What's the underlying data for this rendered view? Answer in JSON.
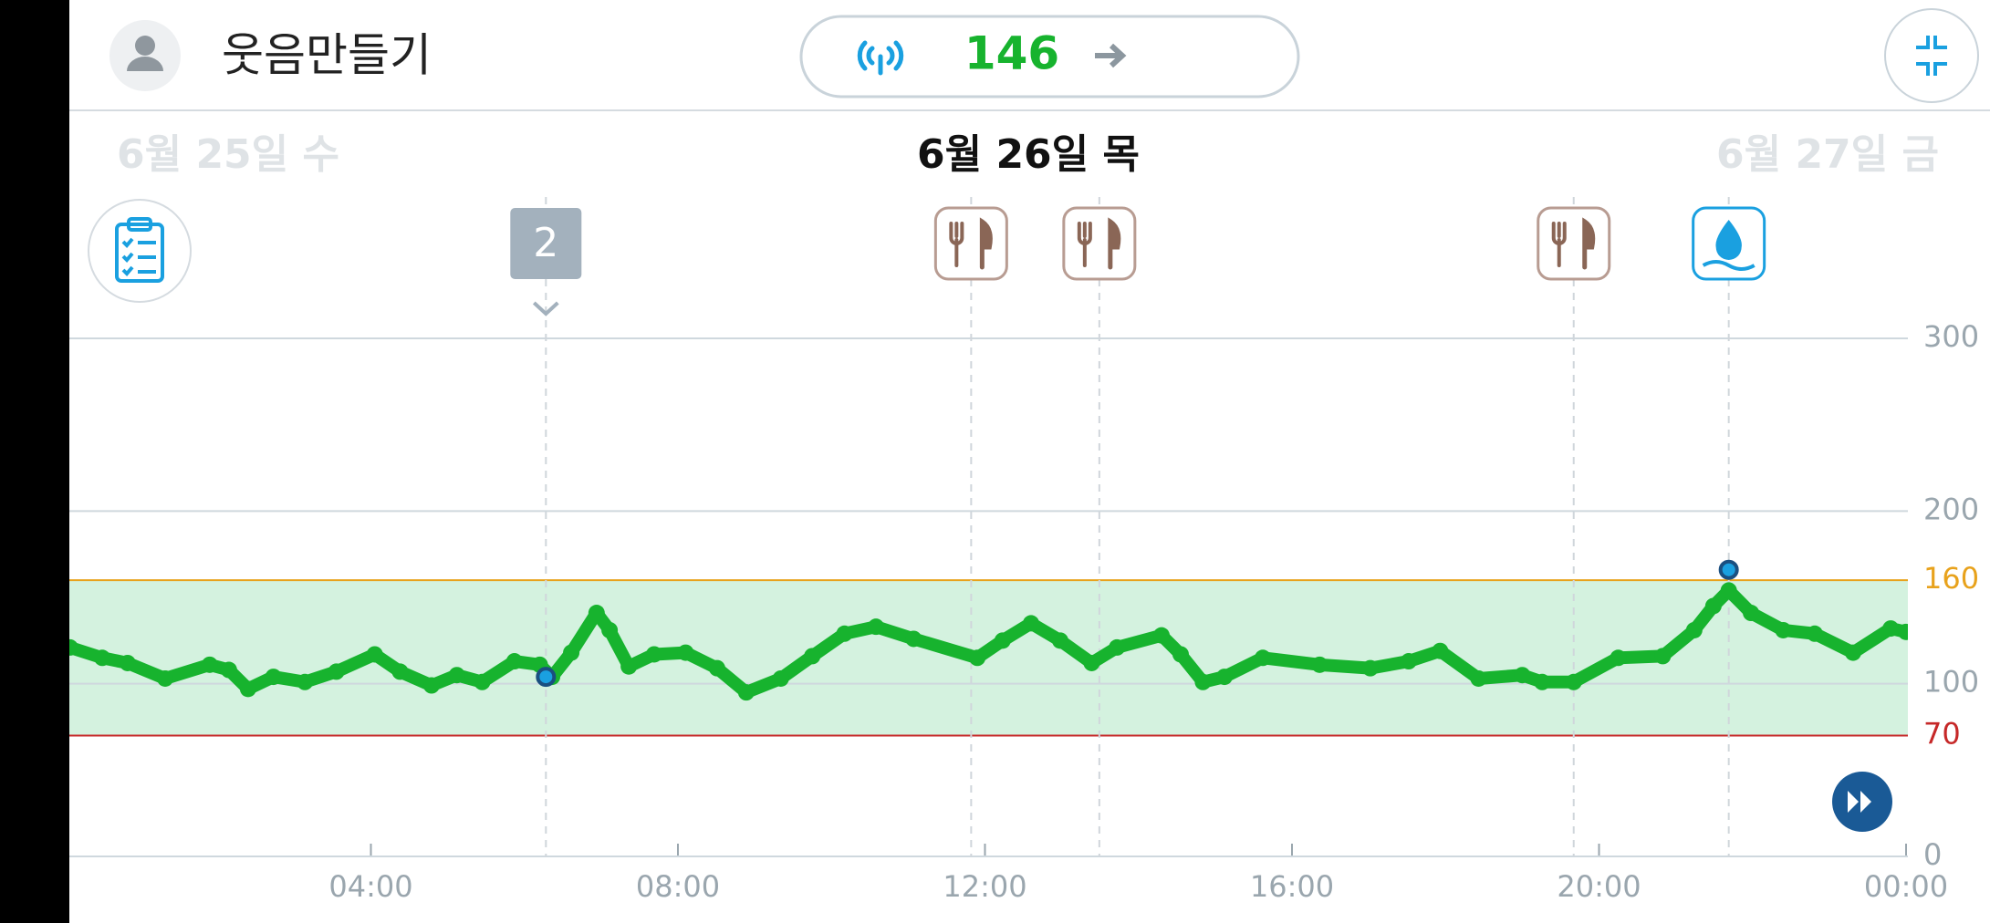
{
  "header": {
    "user_name": "웃음만들기",
    "reading": "146"
  },
  "dates": [
    "6월 25일 수",
    "6월 26일 목",
    "6월 27일 금"
  ],
  "chart_data": {
    "type": "line",
    "x": [
      0.08,
      0.5,
      0.83,
      1.32,
      1.9,
      2.15,
      2.4,
      2.73,
      3.14,
      3.55,
      4.05,
      4.38,
      4.79,
      5.12,
      5.45,
      5.87,
      6.2,
      6.36,
      6.61,
      6.94,
      7.11,
      7.36,
      7.69,
      8.1,
      8.51,
      8.89,
      9.34,
      9.75,
      10.17,
      10.58,
      11.07,
      11.9,
      12.23,
      12.6,
      12.98,
      13.39,
      13.72,
      14.3,
      14.55,
      14.84,
      15.12,
      15.62,
      16.36,
      17.02,
      17.52,
      17.93,
      18.43,
      19.0,
      19.26,
      19.67,
      20.25,
      20.83,
      21.24,
      21.49,
      21.69,
      21.98,
      22.4,
      22.81,
      23.31,
      23.8,
      24
    ],
    "series": [
      {
        "color": "#17b32e",
        "values": [
          121,
          115,
          112,
          103,
          111,
          108,
          97,
          104,
          101,
          107,
          117,
          107,
          99,
          105,
          101,
          113,
          111,
          104,
          118,
          141,
          131,
          110,
          117,
          118,
          109,
          95,
          103,
          116,
          129,
          133,
          126,
          115,
          125,
          135,
          125,
          112,
          121,
          128,
          117,
          101,
          104,
          115,
          111,
          109,
          113,
          119,
          103,
          105,
          101,
          101,
          115,
          116,
          131,
          145,
          154,
          141,
          131,
          129,
          118,
          132,
          130
        ]
      }
    ],
    "xlim": [
      0,
      24
    ],
    "xticks": [
      {
        "value": 4,
        "label": "04:00"
      },
      {
        "value": 8,
        "label": "08:00"
      },
      {
        "value": 12,
        "label": "12:00"
      },
      {
        "value": 16,
        "label": "16:00"
      },
      {
        "value": 20,
        "label": "20:00"
      },
      {
        "value": 24,
        "label": "00:00"
      }
    ],
    "ylim": [
      0,
      300
    ],
    "yticks": [
      0,
      100,
      200,
      300
    ],
    "target_low": 70,
    "target_high": 160,
    "grid": true,
    "markers": [
      {
        "x": 6.28,
        "value": 104
      },
      {
        "x": 21.69,
        "value": 166
      }
    ],
    "events": [
      {
        "x": 6.28,
        "label": "2"
      },
      {
        "x": 11.82,
        "kind": "meal"
      },
      {
        "x": 13.49,
        "kind": "meal"
      },
      {
        "x": 19.67,
        "kind": "meal"
      },
      {
        "x": 21.69,
        "kind": "water"
      }
    ]
  }
}
